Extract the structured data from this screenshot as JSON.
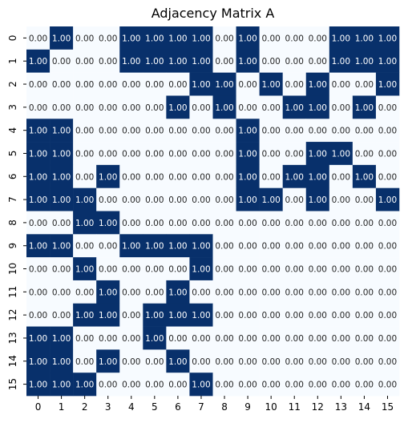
{
  "chart_data": {
    "type": "heatmap",
    "title": "Adjacency Matrix A",
    "xlabel": "",
    "ylabel": "",
    "x_tick_labels": [
      "0",
      "1",
      "2",
      "3",
      "4",
      "5",
      "6",
      "7",
      "8",
      "9",
      "10",
      "11",
      "12",
      "13",
      "14",
      "15"
    ],
    "y_tick_labels": [
      "0",
      "1",
      "2",
      "3",
      "4",
      "5",
      "6",
      "7",
      "8",
      "9",
      "10",
      "11",
      "12",
      "13",
      "14",
      "15"
    ],
    "value_format": "0.00",
    "colorbar": false,
    "colors": {
      "high": "#08306b",
      "low": "#f7fbff",
      "text_on_high": "#ffffff",
      "text_on_low": "#262626"
    },
    "matrix": [
      [
        0,
        1,
        0,
        0,
        1,
        1,
        1,
        1,
        0,
        1,
        0,
        0,
        0,
        1,
        1,
        1
      ],
      [
        1,
        0,
        0,
        0,
        1,
        1,
        1,
        1,
        0,
        1,
        0,
        0,
        0,
        1,
        1,
        1
      ],
      [
        0,
        0,
        0,
        0,
        0,
        0,
        0,
        1,
        1,
        0,
        1,
        0,
        1,
        0,
        0,
        1
      ],
      [
        0,
        0,
        0,
        0,
        0,
        0,
        1,
        0,
        1,
        0,
        0,
        1,
        1,
        0,
        1,
        0
      ],
      [
        1,
        1,
        0,
        0,
        0,
        0,
        0,
        0,
        0,
        1,
        0,
        0,
        0,
        0,
        0,
        0
      ],
      [
        1,
        1,
        0,
        0,
        0,
        0,
        0,
        0,
        0,
        1,
        0,
        0,
        1,
        1,
        0,
        0
      ],
      [
        1,
        1,
        0,
        1,
        0,
        0,
        0,
        0,
        0,
        1,
        0,
        1,
        1,
        0,
        1,
        0
      ],
      [
        1,
        1,
        1,
        0,
        0,
        0,
        0,
        0,
        0,
        1,
        1,
        0,
        1,
        0,
        0,
        1
      ],
      [
        0,
        0,
        1,
        1,
        0,
        0,
        0,
        0,
        0,
        0,
        0,
        0,
        0,
        0,
        0,
        0
      ],
      [
        1,
        1,
        0,
        0,
        1,
        1,
        1,
        1,
        0,
        0,
        0,
        0,
        0,
        0,
        0,
        0
      ],
      [
        0,
        0,
        1,
        0,
        0,
        0,
        0,
        1,
        0,
        0,
        0,
        0,
        0,
        0,
        0,
        0
      ],
      [
        0,
        0,
        0,
        1,
        0,
        0,
        1,
        0,
        0,
        0,
        0,
        0,
        0,
        0,
        0,
        0
      ],
      [
        0,
        0,
        1,
        1,
        0,
        1,
        1,
        1,
        0,
        0,
        0,
        0,
        0,
        0,
        0,
        0
      ],
      [
        1,
        1,
        0,
        0,
        0,
        1,
        0,
        0,
        0,
        0,
        0,
        0,
        0,
        0,
        0,
        0
      ],
      [
        1,
        1,
        0,
        1,
        0,
        0,
        1,
        0,
        0,
        0,
        0,
        0,
        0,
        0,
        0,
        0
      ],
      [
        1,
        1,
        1,
        0,
        0,
        0,
        0,
        1,
        0,
        0,
        0,
        0,
        0,
        0,
        0,
        0
      ]
    ]
  }
}
